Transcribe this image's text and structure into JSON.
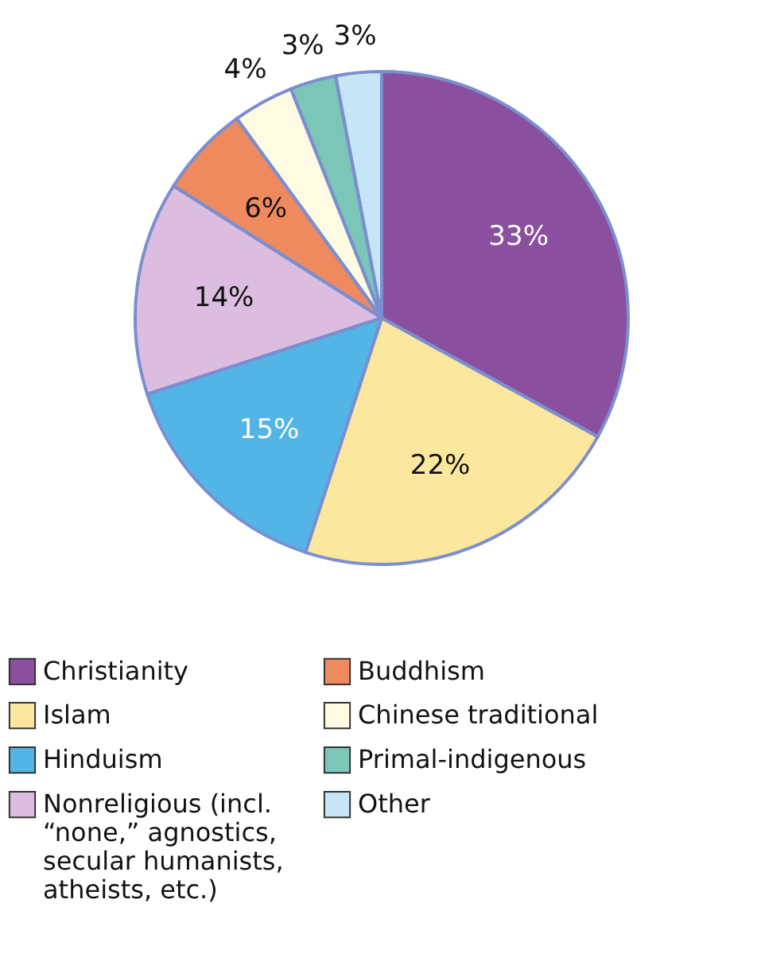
{
  "chart_data": {
    "type": "pie",
    "categories": [
      "Christianity",
      "Islam",
      "Hinduism",
      "Nonreligious (incl. “none,” agnostics, secular humanists, atheists, etc.)",
      "Buddhism",
      "Chinese traditional",
      "Primal-indigenous",
      "Other"
    ],
    "values": [
      33,
      22,
      15,
      14,
      6,
      4,
      3,
      3
    ],
    "value_labels": [
      "33%",
      "22%",
      "15%",
      "14%",
      "6%",
      "4%",
      "3%",
      "3%"
    ],
    "colors": [
      "#8a4f9e",
      "#fbe89e",
      "#52b5e6",
      "#dcbcdf",
      "#ef8a5e",
      "#fffbe2",
      "#7cc6b8",
      "#c6e5f7"
    ],
    "legend": "bottom"
  }
}
